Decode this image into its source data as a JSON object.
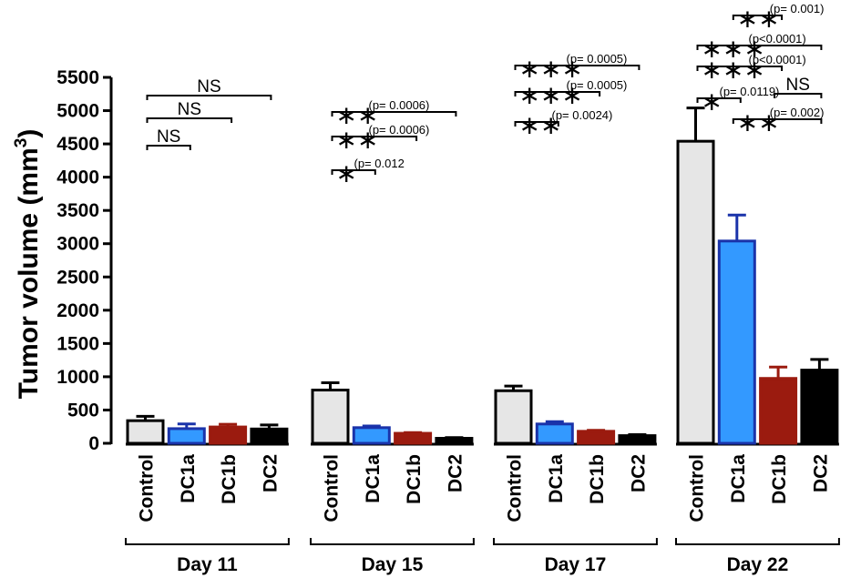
{
  "chart_data": {
    "type": "bar",
    "ylabel": "Tumor volume (mm",
    "ylabel_sup": "3",
    "ylabel_close": ")",
    "ylim": [
      0,
      5500
    ],
    "yticks": [
      "0",
      "500",
      "1000",
      "1500",
      "2000",
      "2500",
      "3000",
      "3500",
      "4000",
      "4500",
      "5000",
      "5500"
    ],
    "categories": [
      "Control",
      "DC1a",
      "DC1b",
      "DC2"
    ],
    "colors": {
      "Control": "#e6e6e6",
      "DC1a": "#3399ff",
      "DC1b": "#9b1b0f",
      "DC2": "#000000",
      "Control_edge": "#000000",
      "DC1a_edge": "#1a33aa",
      "DC1b_edge": "#9b1b0f",
      "DC2_edge": "#000000"
    },
    "groups": [
      {
        "name": "Day 11",
        "values": [
          340,
          220,
          245,
          215
        ],
        "errors": [
          65,
          70,
          40,
          60
        ],
        "comparisons": [
          {
            "from": 0,
            "to": 1,
            "stars": "",
            "label": "NS",
            "p": ""
          },
          {
            "from": 0,
            "to": 2,
            "stars": "",
            "label": "NS",
            "p": ""
          },
          {
            "from": 0,
            "to": 3,
            "stars": "",
            "label": "NS",
            "p": ""
          }
        ]
      },
      {
        "name": "Day 15",
        "values": [
          800,
          235,
          150,
          75
        ],
        "errors": [
          110,
          25,
          10,
          10
        ],
        "comparisons": [
          {
            "from": 0,
            "to": 1,
            "stars": "*",
            "label": "",
            "p": "(p= 0.012"
          },
          {
            "from": 0,
            "to": 2,
            "stars": "**",
            "label": "",
            "p": "(p= 0.0006)"
          },
          {
            "from": 0,
            "to": 3,
            "stars": "**",
            "label": "",
            "p": "(p= 0.0006)"
          }
        ]
      },
      {
        "name": "Day 17",
        "values": [
          790,
          290,
          180,
          115
        ],
        "errors": [
          70,
          35,
          15,
          15
        ],
        "comparisons": [
          {
            "from": 0,
            "to": 1,
            "stars": "**",
            "label": "",
            "p": "(p= 0.0024)"
          },
          {
            "from": 0,
            "to": 2,
            "stars": "***",
            "label": "",
            "p": "(p= 0.0005)"
          },
          {
            "from": 0,
            "to": 3,
            "stars": "***",
            "label": "",
            "p": "(p= 0.0005)"
          }
        ]
      },
      {
        "name": "Day 22",
        "values": [
          4540,
          3040,
          975,
          1100
        ],
        "errors": [
          500,
          390,
          170,
          160
        ],
        "comparisons": [
          {
            "from": 1,
            "to": 3,
            "stars": "**",
            "label": "",
            "p": "(p= 0.002)"
          },
          {
            "from": 2,
            "to": 3,
            "stars": "",
            "label": "NS",
            "p": ""
          },
          {
            "from": 0,
            "to": 1,
            "stars": "*",
            "label": "",
            "p": "(p= 0.0119)"
          },
          {
            "from": 0,
            "to": 2,
            "stars": "***",
            "label": "",
            "p": "(p<0.0001)"
          },
          {
            "from": 0,
            "to": 3,
            "stars": "***",
            "label": "",
            "p": "(p<0.0001)"
          },
          {
            "from": 1,
            "to": 2,
            "stars": "**",
            "label": "",
            "p": "(p= 0.001)"
          }
        ]
      }
    ]
  }
}
